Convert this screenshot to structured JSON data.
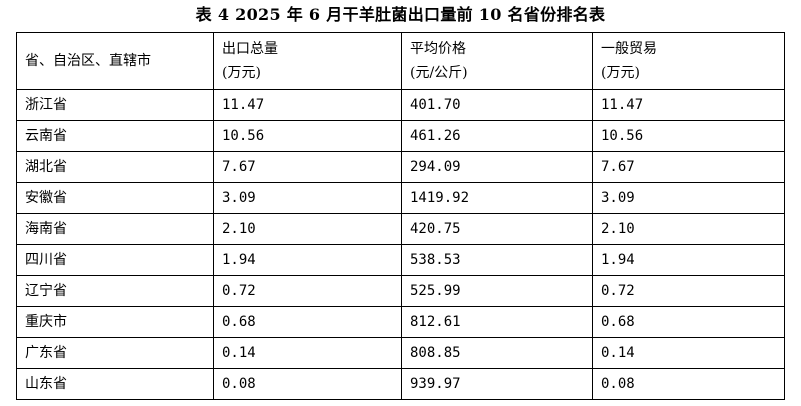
{
  "title": "表 4  2025 年 6 月干羊肚菌出口量前 10 名省份排名表",
  "table": {
    "headers": [
      {
        "line1": "省、自治区、直辖市",
        "line2": ""
      },
      {
        "line1": "出口总量",
        "line2": "(万元)"
      },
      {
        "line1": "平均价格",
        "line2": "(元/公斤)"
      },
      {
        "line1": "一般贸易",
        "line2": "(万元)"
      }
    ],
    "rows": [
      {
        "region": "浙江省",
        "total": "11.47",
        "price": "401.70",
        "general": "11.47"
      },
      {
        "region": "云南省",
        "total": "10.56",
        "price": "461.26",
        "general": "10.56"
      },
      {
        "region": "湖北省",
        "total": "7.67",
        "price": "294.09",
        "general": "7.67"
      },
      {
        "region": "安徽省",
        "total": "3.09",
        "price": "1419.92",
        "general": "3.09"
      },
      {
        "region": "海南省",
        "total": "2.10",
        "price": "420.75",
        "general": "2.10"
      },
      {
        "region": "四川省",
        "total": "1.94",
        "price": "538.53",
        "general": "1.94"
      },
      {
        "region": "辽宁省",
        "total": "0.72",
        "price": "525.99",
        "general": "0.72"
      },
      {
        "region": "重庆市",
        "total": "0.68",
        "price": "812.61",
        "general": "0.68"
      },
      {
        "region": "广东省",
        "total": "0.14",
        "price": "808.85",
        "general": "0.14"
      },
      {
        "region": "山东省",
        "total": "0.08",
        "price": "939.97",
        "general": "0.08"
      }
    ]
  }
}
